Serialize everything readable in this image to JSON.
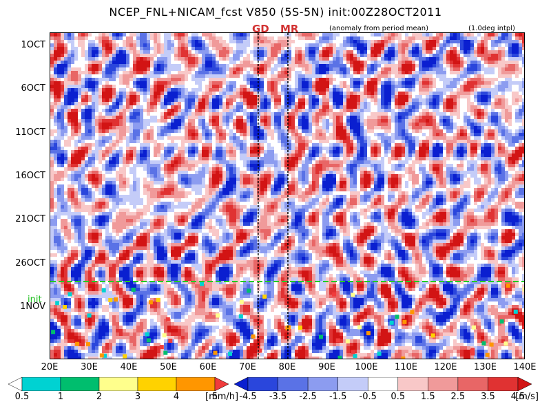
{
  "header": {
    "title": "NCEP_FNL+NICAM_fcst V850 (5S-5N) init:00Z28OCT2011",
    "anomaly_note": "(anomaly from period mean)",
    "intpl_note": "(1.0deg intpl)",
    "marker_gd": "GD",
    "marker_mr": "MR",
    "init_label": "init"
  },
  "chart_data": {
    "type": "heatmap",
    "title": "NCEP_FNL+NICAM_fcst V850 (5S-5N) init:00Z28OCT2011",
    "x_ticks": [
      "20E",
      "30E",
      "40E",
      "50E",
      "60E",
      "70E",
      "80E",
      "90E",
      "100E",
      "110E",
      "120E",
      "130E",
      "140E"
    ],
    "x_range": [
      20,
      140
    ],
    "y_ticks": [
      "1OCT",
      "6OCT",
      "11OCT",
      "16OCT",
      "21OCT",
      "26OCT",
      "1NOV"
    ],
    "y_range_days": [
      -1.5,
      36
    ],
    "init_day": 27,
    "vertical_markers": [
      {
        "name": "GD",
        "lon": 72.5
      },
      {
        "name": "MR",
        "lon": 80
      }
    ],
    "wind_anomaly": {
      "levels": [
        -4.5,
        -3.5,
        -2.5,
        -1.5,
        -0.5,
        0.5,
        1.5,
        2.5,
        3.5,
        4.5
      ],
      "labels": [
        "-4.5",
        "-3.5",
        "-2.5",
        "-1.5",
        "-0.5",
        "0.5",
        "1.5",
        "2.5",
        "3.5",
        "4.5"
      ],
      "colors": [
        "#0a1fd0",
        "#2a46dc",
        "#5a72e6",
        "#8c9cf0",
        "#c4ccf8",
        "#ffffff",
        "#f8c8c8",
        "#f09a9a",
        "#e86666",
        "#e03232",
        "#d21414"
      ],
      "unit": "[m/s]"
    },
    "rain": {
      "levels": [
        0.5,
        1,
        2,
        3,
        4,
        5
      ],
      "labels": [
        "0.5",
        "1",
        "2",
        "3",
        "4",
        "5"
      ],
      "colors": [
        "#ffffff",
        "#00d2d2",
        "#00be6e",
        "#ffff8c",
        "#ffd200",
        "#ff9600",
        "#f03c3c"
      ],
      "unit": "[mm/h]"
    }
  }
}
